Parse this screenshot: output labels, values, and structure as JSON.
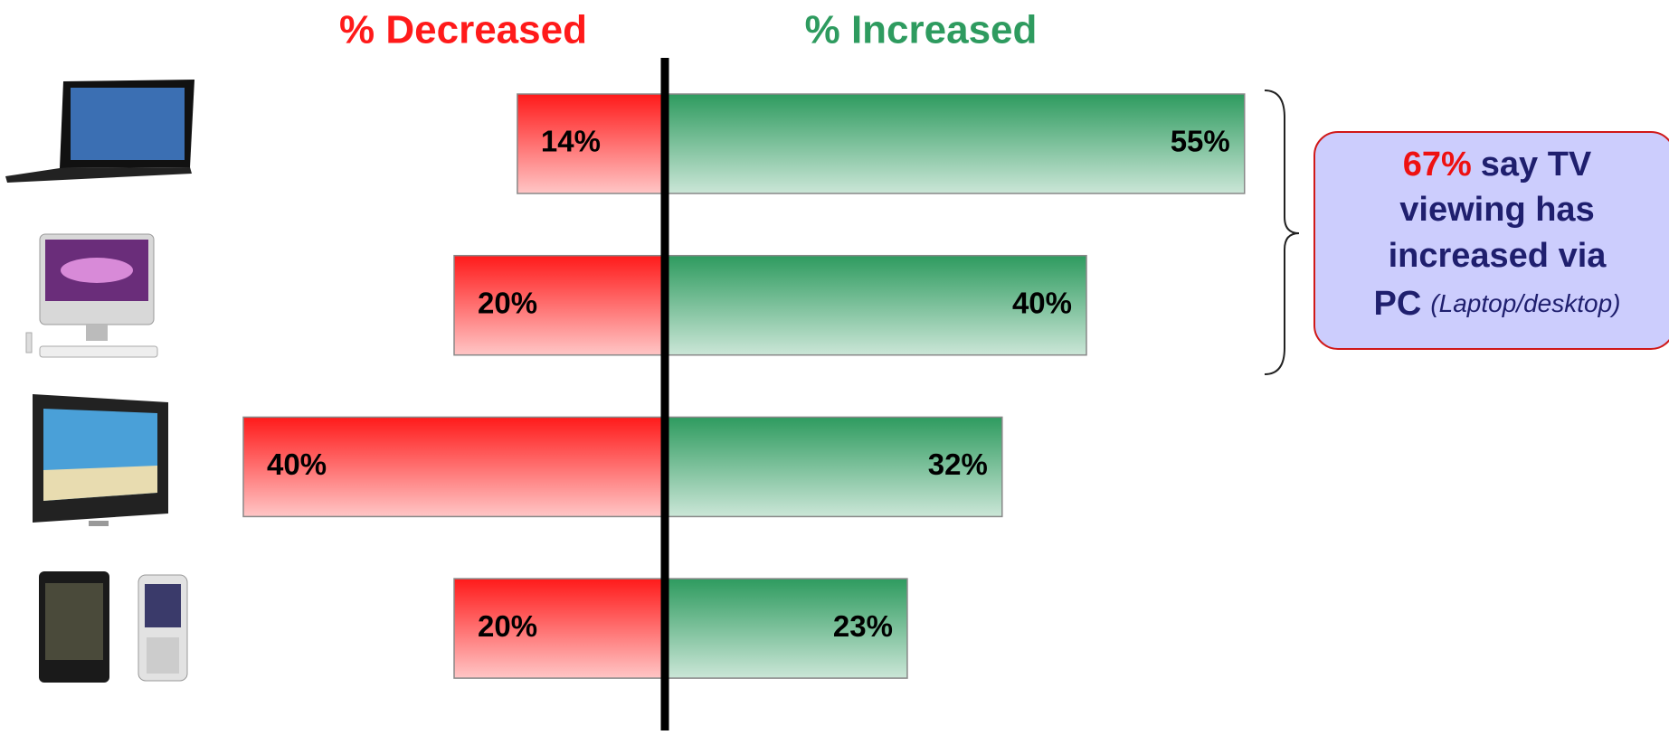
{
  "chart_data": {
    "type": "diverging-bar",
    "categories": [
      null,
      null,
      null,
      null
    ],
    "series": [
      {
        "name": "% Decreased",
        "color": "#ff1a1a",
        "values": [
          14,
          20,
          40,
          20
        ],
        "value_labels": [
          "14%",
          "20%",
          "40%",
          "20%"
        ]
      },
      {
        "name": "% Increased",
        "color": "#2e9b5f",
        "values": [
          55,
          40,
          32,
          23
        ],
        "value_labels": [
          "55%",
          "40%",
          "32%",
          "23%"
        ]
      }
    ],
    "xlim": [
      0,
      60
    ],
    "callout": {
      "highlight": "67%",
      "lines": [
        "say TV",
        "viewing has",
        "increased via",
        "PC"
      ],
      "note": "(Laptop/desktop)"
    }
  }
}
